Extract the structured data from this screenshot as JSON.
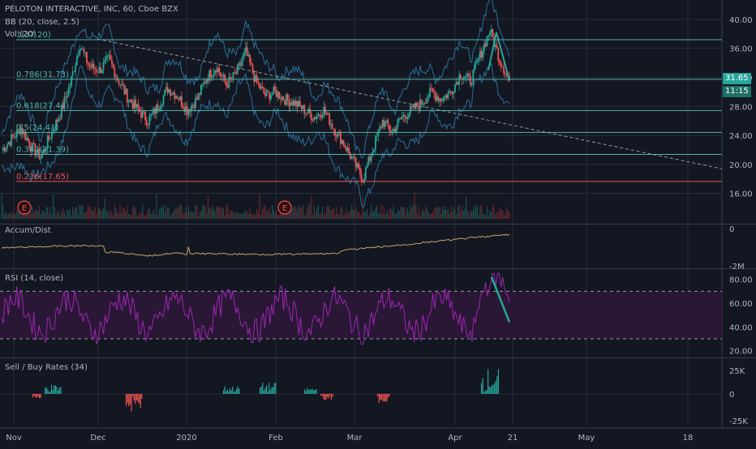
{
  "header": {
    "symbol_title": "PELOTON INTERACTIVE, INC, 60, Cboe BZX",
    "indicator_bb": "BB (20, close, 2.5)",
    "indicator_vol": "Vol (20)"
  },
  "panes": {
    "accum_label": "Accum/Dist",
    "rsi_label": "RSI (14, close)",
    "sellbuy_label": "Sell / Buy Rates (34)"
  },
  "price_tags": {
    "last_price": "31.65",
    "countdown": "11:15",
    "last_price_color": "#26a69a"
  },
  "earnings_markers": [
    "E",
    "E"
  ],
  "colors": {
    "up": "#26a69a",
    "down": "#ef5350",
    "bb": "#2a6f97",
    "rsi": "#9c27b0",
    "accum": "#c8a26a",
    "fib_red": "#ef5350",
    "fib_line": "#4db6ac"
  },
  "chart_data": [
    {
      "type": "line",
      "title": "PELOTON INTERACTIVE, INC, 60, Cboe BZX",
      "x_ticks": [
        "Nov",
        "Dec",
        "2020",
        "Feb",
        "Mar",
        "Apr",
        "21",
        "May",
        "18"
      ],
      "y_ticks": [
        16.0,
        20.0,
        24.0,
        28.0,
        32.0,
        36.0,
        40.0
      ],
      "ylim": [
        12.5,
        42.0
      ],
      "fib_levels": [
        {
          "ratio": "1",
          "value": 37.2,
          "label": "1(37.20)"
        },
        {
          "ratio": "0.786",
          "value": 31.73,
          "label": "0.786(31.73)"
        },
        {
          "ratio": "0.618",
          "value": 27.43,
          "label": "0.618(27.43)"
        },
        {
          "ratio": "0.5",
          "value": 24.41,
          "label": "0.5(24.41)"
        },
        {
          "ratio": "0.382",
          "value": 21.39,
          "label": "0.382(21.39)"
        },
        {
          "ratio": "0.236",
          "value": 17.65,
          "label": "0.236(17.65)"
        }
      ],
      "series": [
        {
          "values": [
            22.0,
            23.5,
            25.0,
            22.5,
            21.0,
            24.0,
            27.0,
            31.0,
            36.5,
            33.5,
            33.0,
            34.5,
            31.5,
            29.0,
            27.5,
            26.0,
            28.0,
            30.5,
            29.5,
            27.5,
            29.0,
            32.0,
            33.5,
            31.0,
            32.5,
            35.5,
            31.5,
            29.5,
            30.0,
            29.0,
            28.5,
            27.5,
            26.5,
            27.5,
            25.0,
            23.0,
            20.5,
            18.0,
            22.0,
            26.0,
            24.5,
            26.5,
            27.5,
            28.5,
            30.0,
            29.0,
            30.0,
            32.5,
            31.5,
            35.0,
            38.5,
            34.5,
            31.6
          ]
        }
      ]
    },
    {
      "type": "line",
      "title": "Accum/Dist",
      "y_ticks": [
        0,
        -2
      ]
    },
    {
      "type": "line",
      "title": "RSI (14, close)",
      "y_ticks": [
        20.0,
        40.0,
        60.0,
        80.0
      ],
      "ylim": [
        15,
        88
      ],
      "bands": [
        30,
        70
      ]
    },
    {
      "type": "bar",
      "title": "Sell / Buy Rates (34)",
      "y_ticks": [
        "25K",
        "0",
        "-25K"
      ]
    }
  ]
}
